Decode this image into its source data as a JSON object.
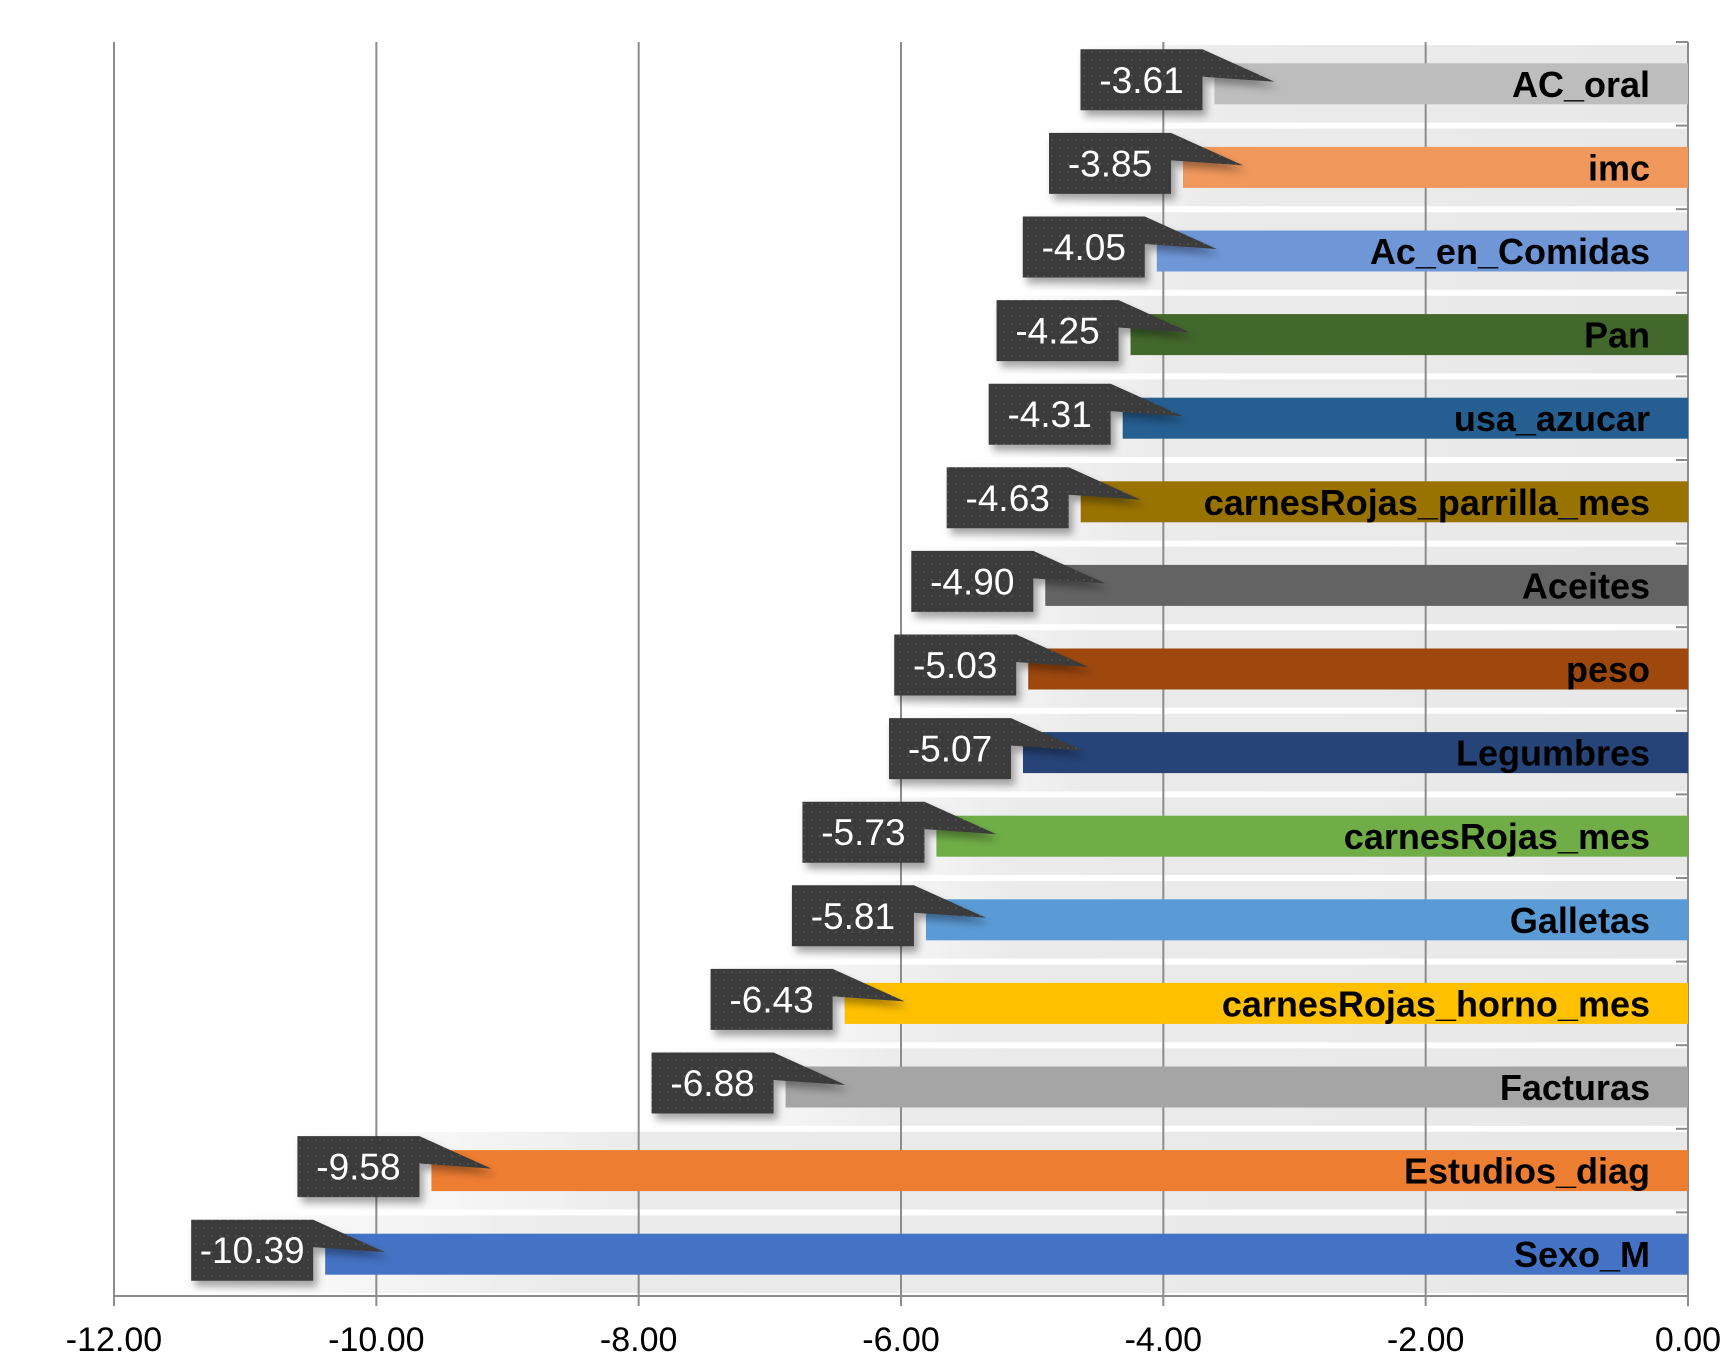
{
  "chart_data": {
    "type": "bar",
    "orientation": "horizontal",
    "title": "",
    "xlabel": "",
    "ylabel": "",
    "xlim": [
      -12,
      0
    ],
    "x_ticks": [
      "-12.00",
      "-10.00",
      "-8.00",
      "-6.00",
      "-4.00",
      "-2.00",
      "0.00"
    ],
    "tick_values": [
      -12,
      -10,
      -8,
      -6,
      -4,
      -2,
      0
    ],
    "grid": true,
    "legend": "none",
    "categories": [
      "AC_oral",
      "imc",
      "Ac_en_Comidas",
      "Pan",
      "usa_azucar",
      "carnesRojas_parrilla_mes",
      "Aceites",
      "peso",
      "Legumbres",
      "carnesRojas_mes",
      "Galletas",
      "carnesRojas_horno_mes",
      "Facturas",
      "Estudios_diag",
      "Sexo_M"
    ],
    "values": [
      -3.61,
      -3.85,
      -4.05,
      -4.25,
      -4.31,
      -4.63,
      -4.9,
      -5.03,
      -5.07,
      -5.73,
      -5.81,
      -6.43,
      -6.88,
      -9.58,
      -10.39
    ],
    "data_labels": [
      "-3.61",
      "-3.85",
      "-4.05",
      "-4.25",
      "-4.31",
      "-4.63",
      "-4.90",
      "-5.03",
      "-5.07",
      "-5.73",
      "-5.81",
      "-6.43",
      "-6.88",
      "-9.58",
      "-10.39"
    ],
    "colors": [
      "#bdbdbd",
      "#f0975c",
      "#6f97d8",
      "#43682b",
      "#255e91",
      "#997300",
      "#636363",
      "#9e480e",
      "#264478",
      "#70ad47",
      "#5b9bd5",
      "#ffc000",
      "#a5a5a5",
      "#ed7d31",
      "#4472c4"
    ]
  }
}
